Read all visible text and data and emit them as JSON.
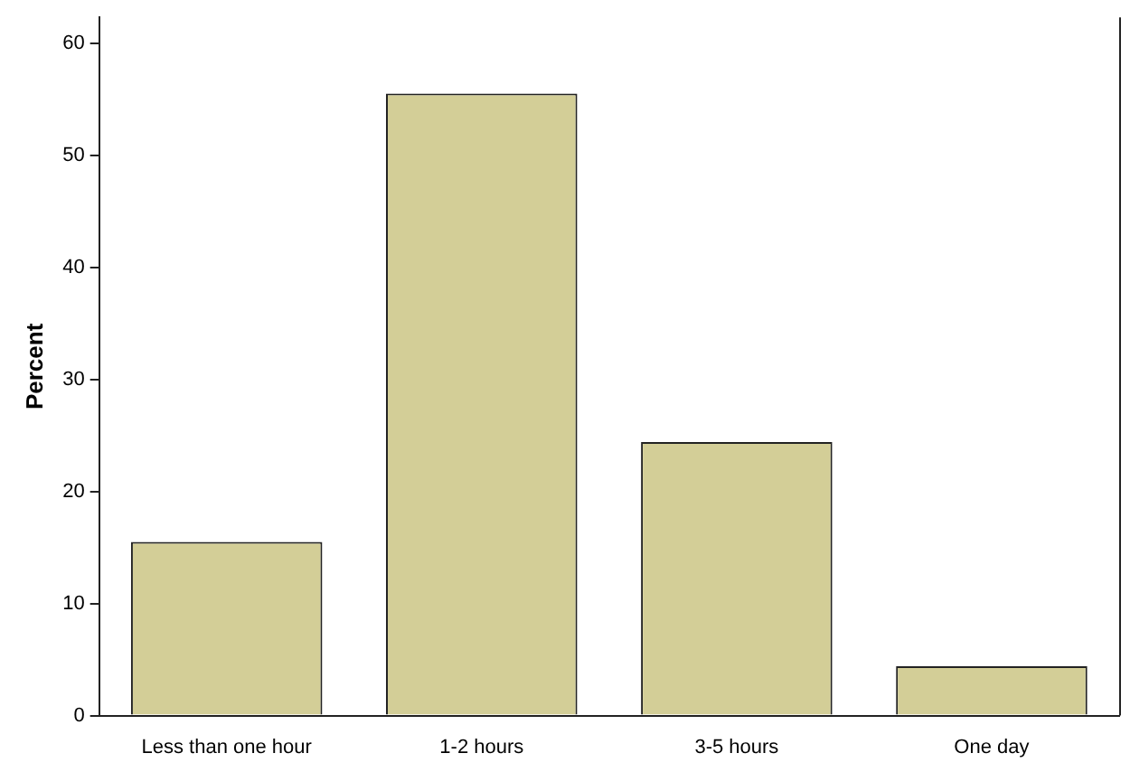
{
  "chart_data": {
    "type": "bar",
    "ylabel": "Percent",
    "categories": [
      "Less than one hour",
      "1-2 hours",
      "3-5 hours",
      "One day"
    ],
    "values": [
      15.5,
      55.5,
      24.4,
      4.4
    ],
    "color": "#d3ce97",
    "ylim": [
      0,
      62.3
    ],
    "yticks": [
      0,
      10,
      20,
      30,
      40,
      50,
      60
    ],
    "grid": false,
    "legend": false
  }
}
